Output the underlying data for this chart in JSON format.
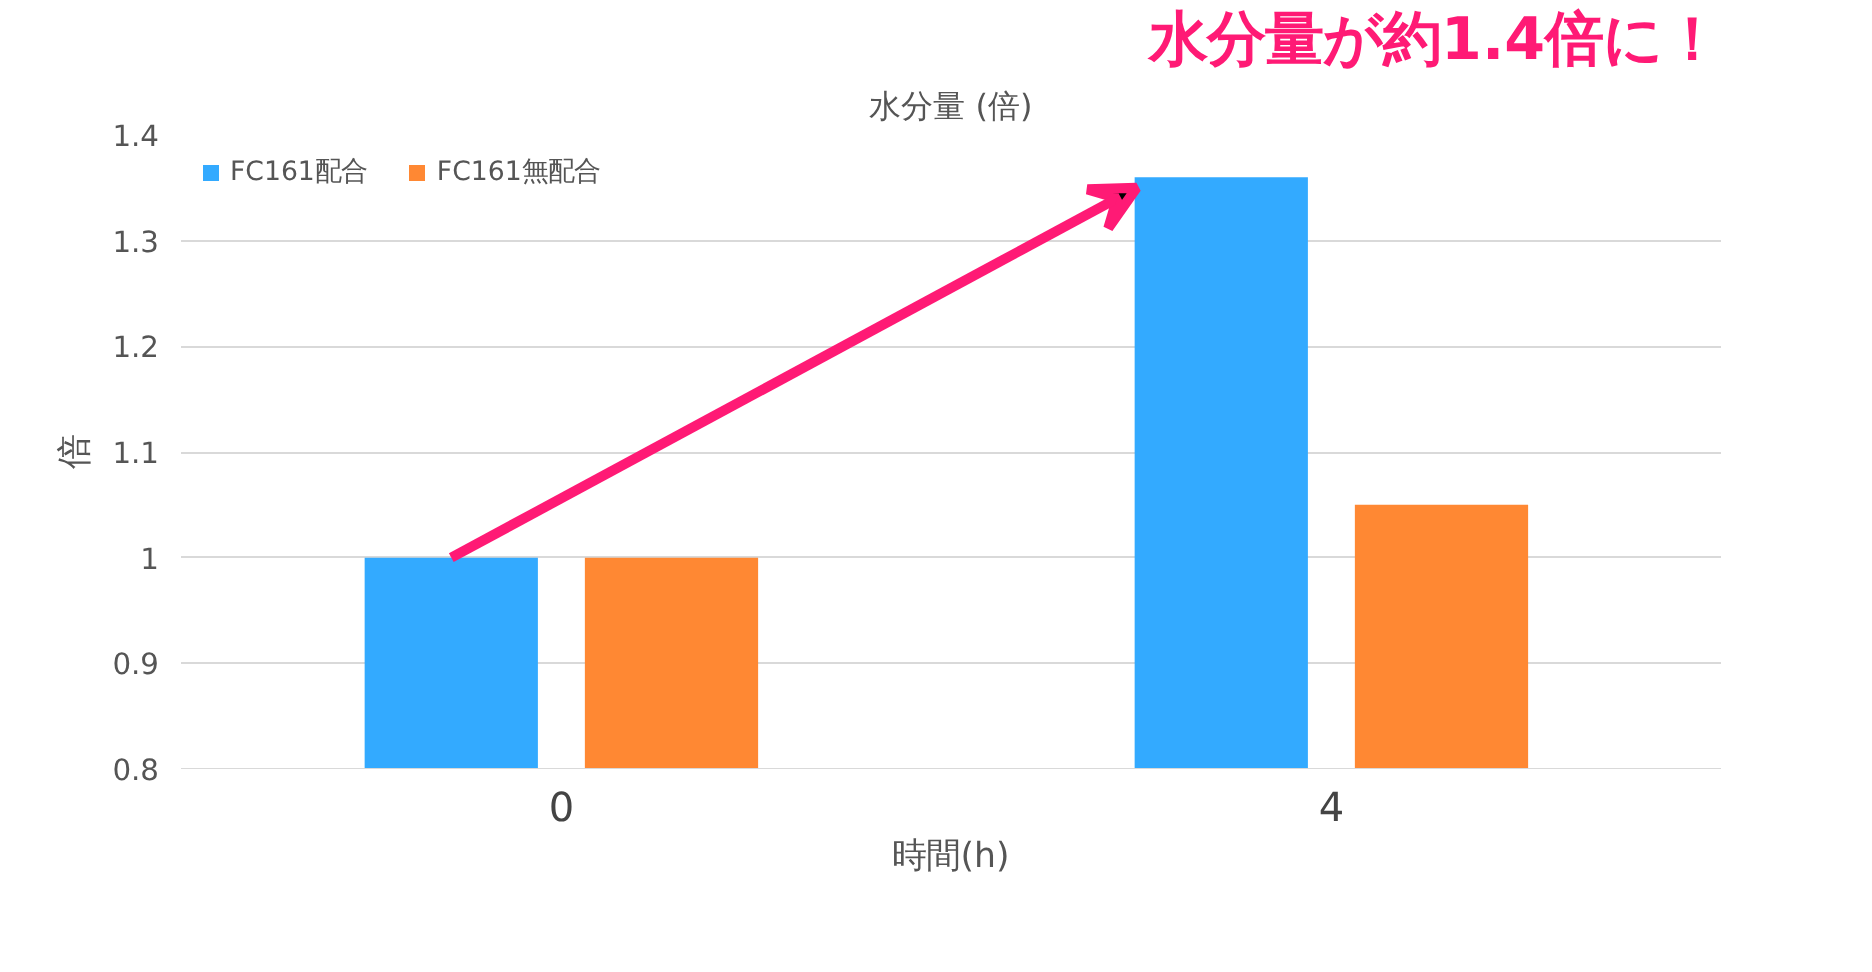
{
  "chart_data": {
    "type": "bar",
    "title": "水分量 (倍)",
    "xlabel": "時間(h)",
    "ylabel": "倍",
    "categories": [
      "0",
      "4"
    ],
    "series": [
      {
        "name": "FC161配合",
        "color": "#33aaff",
        "values": [
          1,
          1.36
        ]
      },
      {
        "name": "FC161無配合",
        "color": "#ff8833",
        "values": [
          1,
          1.05
        ]
      }
    ],
    "ylim": [
      0.8,
      1.4
    ],
    "yticks": [
      0.8,
      0.9,
      1,
      1.1,
      1.2,
      1.3,
      1.4
    ],
    "grid": "y",
    "legend": "top left",
    "annotations": [
      "水分量が約1.4倍に！"
    ]
  }
}
